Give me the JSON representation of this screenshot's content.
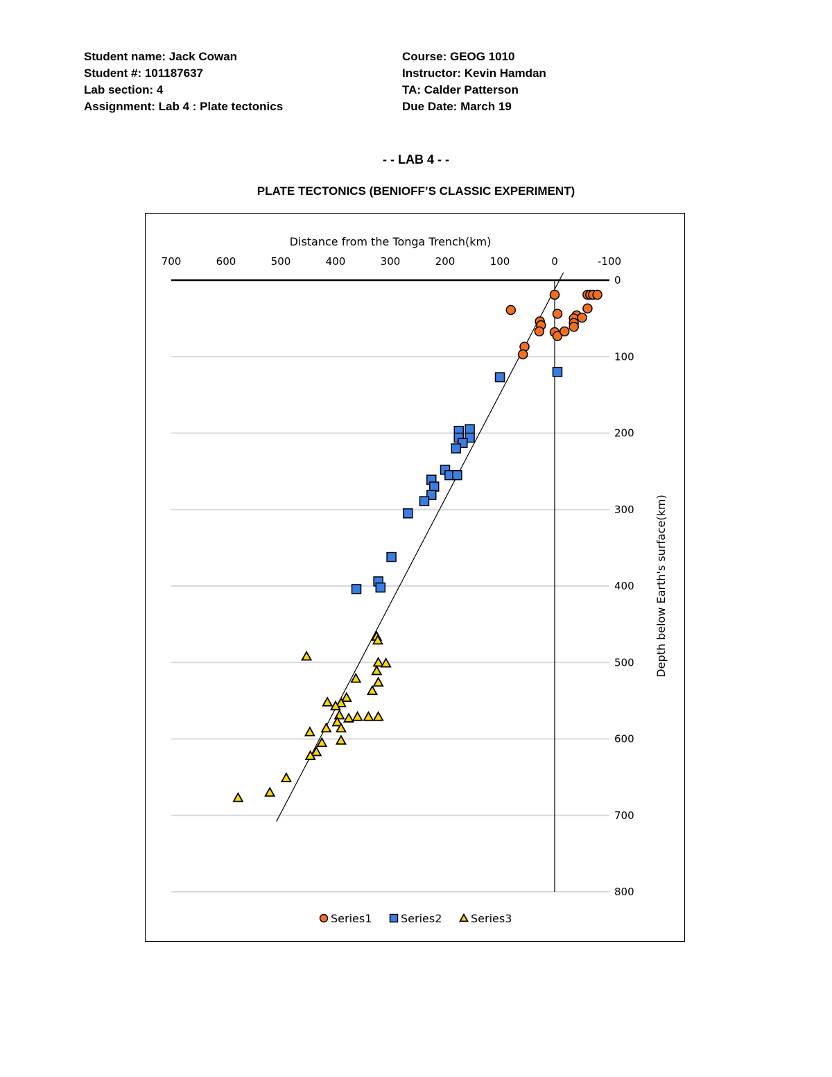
{
  "header": {
    "student_name": "Student name: Jack Cowan",
    "student_number": "Student #: 101187637",
    "lab_section": "Lab section: 4",
    "assignment": "Assignment: Lab 4 : Plate tectonics",
    "course": "Course: GEOG 1010",
    "instructor": "Instructor: Kevin Hamdan",
    "ta": "TA: Calder Patterson",
    "due_date": "Due Date: March 19"
  },
  "lab_title": "- - LAB 4 - -",
  "subtitle": "PLATE TECTONICS (BENIOFF’S CLASSIC EXPERIMENT)",
  "chart_data": {
    "type": "scatter",
    "title": "",
    "xlabel": "Distance from the Tonga Trench(km)",
    "ylabel": "Depth below Earth's surface(km)",
    "xlim": [
      700,
      -100
    ],
    "ylim": [
      0,
      800
    ],
    "x_reversed": true,
    "y_reversed": true,
    "x_axis_position": "top",
    "y_axis_position": "right",
    "xticks": [
      700,
      600,
      500,
      400,
      300,
      200,
      100,
      0,
      -100
    ],
    "xtick_labels": [
      "700",
      "600",
      "500",
      "400",
      "300",
      "200",
      "100",
      "0",
      "-100"
    ],
    "yticks": [
      0,
      100,
      200,
      300,
      400,
      500,
      600,
      700,
      800
    ],
    "ytick_labels": [
      "0",
      "100",
      "200",
      "300",
      "400",
      "500",
      "600",
      "700",
      "800"
    ],
    "grid": "horizontal",
    "legend": "bottom",
    "colors": {
      "Series1": "#f07020",
      "Series2": "#3a7ee4",
      "Series3": "#ffd700"
    },
    "series": [
      {
        "name": "Series1",
        "marker": "circle",
        "points": [
          [
            0,
            19
          ],
          [
            -60,
            19
          ],
          [
            -65,
            19
          ],
          [
            -70,
            19
          ],
          [
            -78,
            19
          ],
          [
            80,
            39
          ],
          [
            -60,
            37
          ],
          [
            -5,
            44
          ],
          [
            -40,
            46
          ],
          [
            -35,
            50
          ],
          [
            -50,
            49
          ],
          [
            -35,
            56
          ],
          [
            27,
            54
          ],
          [
            25,
            59
          ],
          [
            28,
            67
          ],
          [
            -35,
            61
          ],
          [
            0,
            68
          ],
          [
            -5,
            73
          ],
          [
            -18,
            67
          ],
          [
            55,
            87
          ],
          [
            58,
            97
          ]
        ]
      },
      {
        "name": "Series2",
        "marker": "square",
        "points": [
          [
            100,
            127
          ],
          [
            -5,
            120
          ],
          [
            175,
            197
          ],
          [
            155,
            195
          ],
          [
            175,
            206
          ],
          [
            155,
            206
          ],
          [
            168,
            213
          ],
          [
            180,
            220
          ],
          [
            200,
            248
          ],
          [
            192,
            255
          ],
          [
            178,
            255
          ],
          [
            225,
            261
          ],
          [
            220,
            270
          ],
          [
            225,
            281
          ],
          [
            238,
            289
          ],
          [
            268,
            305
          ],
          [
            298,
            362
          ],
          [
            322,
            394
          ],
          [
            318,
            402
          ],
          [
            362,
            404
          ]
        ]
      },
      {
        "name": "Series3",
        "marker": "triangle",
        "points": [
          [
            325,
            466
          ],
          [
            323,
            471
          ],
          [
            453,
            492
          ],
          [
            322,
            500
          ],
          [
            308,
            501
          ],
          [
            325,
            511
          ],
          [
            363,
            521
          ],
          [
            322,
            526
          ],
          [
            333,
            537
          ],
          [
            380,
            546
          ],
          [
            415,
            552
          ],
          [
            390,
            553
          ],
          [
            400,
            557
          ],
          [
            393,
            569
          ],
          [
            376,
            573
          ],
          [
            360,
            571
          ],
          [
            340,
            571
          ],
          [
            322,
            571
          ],
          [
            397,
            578
          ],
          [
            390,
            586
          ],
          [
            417,
            586
          ],
          [
            447,
            591
          ],
          [
            390,
            602
          ],
          [
            425,
            605
          ],
          [
            435,
            617
          ],
          [
            446,
            622
          ],
          [
            490,
            651
          ],
          [
            520,
            670
          ],
          [
            578,
            677
          ]
        ]
      }
    ],
    "lines": [
      {
        "type": "trendline",
        "from": [
          508,
          708
        ],
        "to": [
          -16,
          -10
        ]
      },
      {
        "type": "reference",
        "from": [
          0,
          0
        ],
        "to": [
          0,
          800
        ]
      }
    ]
  }
}
